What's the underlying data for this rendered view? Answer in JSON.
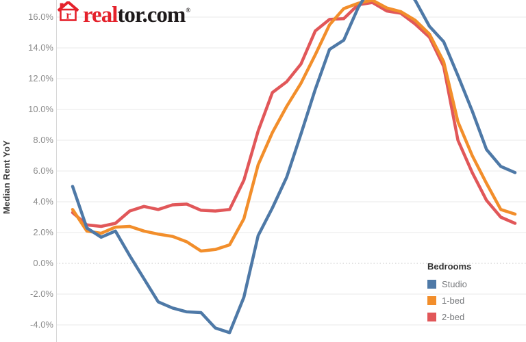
{
  "logo": {
    "brand_red": "real",
    "brand_dark": "tor.com",
    "registered_mark": "®",
    "icon": "realtor-house-icon",
    "red": "#e4212b",
    "dark": "#1e1a1b"
  },
  "y_axis": {
    "title": "Median Rent YoY",
    "ticks": [
      {
        "value": 16,
        "label": "16.0%"
      },
      {
        "value": 14,
        "label": "14.0%"
      },
      {
        "value": 12,
        "label": "12.0%"
      },
      {
        "value": 10,
        "label": "10.0%"
      },
      {
        "value": 8,
        "label": "8.0%"
      },
      {
        "value": 6,
        "label": "6.0%"
      },
      {
        "value": 4,
        "label": "4.0%"
      },
      {
        "value": 2,
        "label": "2.0%"
      },
      {
        "value": 0,
        "label": "0.0%"
      },
      {
        "value": -2,
        "label": "-2.0%"
      },
      {
        "value": -4,
        "label": "-4.0%"
      }
    ]
  },
  "legend": {
    "title": "Bedrooms",
    "items": [
      {
        "label": "Studio",
        "color": "#4e79a7"
      },
      {
        "label": "1-bed",
        "color": "#f28e2b"
      },
      {
        "label": "2-bed",
        "color": "#e15759"
      }
    ]
  },
  "chart_style": {
    "grid_color": "#e9e9e9",
    "zero_line_color": "#c4c4c4",
    "axis_line_color": "#d8d8d8",
    "background": "#ffffff",
    "line_width": 4.5
  },
  "chart_data": {
    "type": "line",
    "ylabel": "Median Rent YoY",
    "unit": "percent",
    "ylim_visible": [
      -5.1,
      17.1
    ],
    "y_ticks": [
      16,
      14,
      12,
      10,
      8,
      6,
      4,
      2,
      0,
      -2,
      -4
    ],
    "grid": true,
    "zero_line_style": "dotted",
    "legend_position": "bottom-right",
    "legend_title": "Bedrooms",
    "x_axis_labels_visible": false,
    "x_points": 32,
    "note_top_clipped": "Studio series peak extends above the visible chart area (clipped at ~17.1%)",
    "series": [
      {
        "name": "Studio",
        "color": "#4e79a7",
        "values": [
          5.0,
          2.3,
          1.7,
          2.1,
          0.5,
          -1.0,
          -2.5,
          -2.9,
          -3.15,
          -3.2,
          -4.2,
          -4.5,
          -2.2,
          1.8,
          3.6,
          5.6,
          8.4,
          11.3,
          13.9,
          14.5,
          16.6,
          18.1,
          18.6,
          18.2,
          17.1,
          15.4,
          14.4,
          12.2,
          9.9,
          7.4,
          6.3,
          5.9
        ]
      },
      {
        "name": "1-bed",
        "color": "#f28e2b",
        "values": [
          3.5,
          2.1,
          1.95,
          2.35,
          2.4,
          2.1,
          1.9,
          1.75,
          1.4,
          0.8,
          0.9,
          1.2,
          2.9,
          6.4,
          8.5,
          10.2,
          11.7,
          13.55,
          15.5,
          16.55,
          16.9,
          17.1,
          16.6,
          16.35,
          15.8,
          14.9,
          13.1,
          9.2,
          7.0,
          5.2,
          3.5,
          3.2
        ]
      },
      {
        "name": "2-bed",
        "color": "#e15759",
        "values": [
          3.3,
          2.5,
          2.4,
          2.6,
          3.4,
          3.7,
          3.5,
          3.8,
          3.85,
          3.45,
          3.4,
          3.5,
          5.4,
          8.6,
          11.1,
          11.8,
          12.95,
          15.1,
          15.85,
          15.9,
          16.8,
          16.95,
          16.4,
          16.25,
          15.55,
          14.7,
          12.8,
          8.0,
          5.9,
          4.1,
          3.0,
          2.6
        ]
      }
    ]
  }
}
